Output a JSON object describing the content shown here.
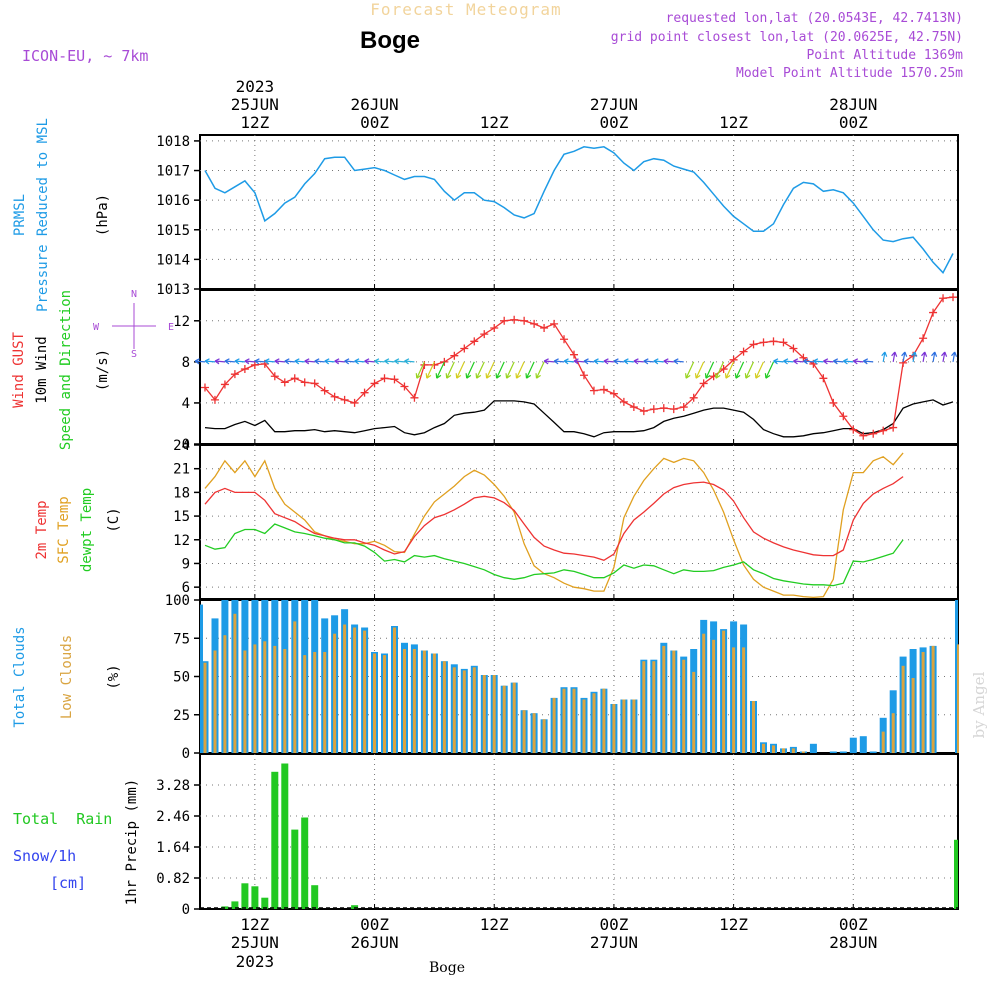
{
  "header": {
    "title": "Forecast Meteogram",
    "location": "Boge",
    "model": "ICON-EU, ~ 7km",
    "requested": "requested lon,lat (20.0543E, 42.7413N)",
    "grid_point": "grid point closest lon,lat (20.0625E, 42.75N)",
    "point_altitude": "Point Altitude 1369m",
    "model_altitude": "Model Point Altitude 1570.25m"
  },
  "time_axis": {
    "top_labels": [
      {
        "l1": "2023",
        "l2": "25JUN",
        "l3": "12Z",
        "h": 12
      },
      {
        "l1": "",
        "l2": "26JUN",
        "l3": "00Z",
        "h": 24
      },
      {
        "l1": "",
        "l2": "",
        "l3": "12Z",
        "h": 36
      },
      {
        "l1": "",
        "l2": "27JUN",
        "l3": "00Z",
        "h": 48
      },
      {
        "l1": "",
        "l2": "",
        "l3": "12Z",
        "h": 60
      },
      {
        "l1": "",
        "l2": "28JUN",
        "l3": "00Z",
        "h": 72
      }
    ],
    "bottom_labels": [
      {
        "l1": "12Z",
        "l2": "25JUN",
        "l3": "2023",
        "h": 12
      },
      {
        "l1": "00Z",
        "l2": "26JUN",
        "l3": "",
        "h": 24
      },
      {
        "l1": "12Z",
        "l2": "",
        "l3": "",
        "h": 36
      },
      {
        "l1": "00Z",
        "l2": "27JUN",
        "l3": "",
        "h": 48
      },
      {
        "l1": "12Z",
        "l2": "",
        "l3": "",
        "h": 60
      },
      {
        "l1": "00Z",
        "l2": "28JUN",
        "l3": "",
        "h": 72
      }
    ],
    "x_range_hours": [
      6.5,
      82.5
    ],
    "footer_label": "Boge",
    "watermark": "by Angel"
  },
  "colors": {
    "pressure": "#1E9BE6",
    "gust": "#EE3333",
    "wind": "#000000",
    "temp2m": "#EE3333",
    "sfc": "#E0A020",
    "dewpt": "#22CC22",
    "total_clouds": "#1E9BE6",
    "low_clouds": "#D9A441",
    "rain": "#22C822",
    "snow": "#3344EE",
    "purple": "#A84BD6"
  },
  "chart_data": [
    {
      "type": "line",
      "panel": "pressure",
      "title": "PRMSL Pressure Reduced to MSL",
      "label_1": "PRMSL",
      "label_2": "Pressure Reduced to MSL",
      "unit": "(hPa)",
      "ylim": [
        1013,
        1018.2
      ],
      "yticks": [
        1013,
        1014,
        1015,
        1016,
        1017,
        1018
      ],
      "x": [
        7,
        8,
        9,
        10,
        11,
        12,
        13,
        14,
        15,
        16,
        17,
        18,
        19,
        20,
        21,
        22,
        23,
        24,
        25,
        26,
        27,
        28,
        29,
        30,
        31,
        32,
        33,
        34,
        35,
        36,
        37,
        38,
        39,
        40,
        41,
        42,
        43,
        44,
        45,
        46,
        47,
        48,
        49,
        50,
        51,
        52,
        53,
        54,
        55,
        56,
        57,
        58,
        59,
        60,
        61,
        62,
        63,
        64,
        65,
        66,
        67,
        68,
        69,
        70,
        71,
        72,
        73,
        74,
        75,
        76,
        77,
        78,
        79,
        80,
        81,
        82
      ],
      "values": [
        1017,
        1016.4,
        1016.25,
        1016.45,
        1016.65,
        1016.25,
        1015.3,
        1015.55,
        1015.9,
        1016.1,
        1016.55,
        1016.9,
        1017.4,
        1017.45,
        1017.45,
        1017.0,
        1017.05,
        1017.1,
        1017.0,
        1016.85,
        1016.7,
        1016.8,
        1016.8,
        1016.7,
        1016.3,
        1016.0,
        1016.25,
        1016.25,
        1016.0,
        1015.95,
        1015.75,
        1015.5,
        1015.4,
        1015.55,
        1016.3,
        1017.0,
        1017.55,
        1017.65,
        1017.8,
        1017.75,
        1017.8,
        1017.6,
        1017.25,
        1017.0,
        1017.3,
        1017.4,
        1017.35,
        1017.15,
        1017.05,
        1016.95,
        1016.6,
        1016.2,
        1015.8,
        1015.45,
        1015.2,
        1014.95,
        1014.95,
        1015.2,
        1015.85,
        1016.4,
        1016.6,
        1016.55,
        1016.3,
        1016.35,
        1016.25,
        1015.9,
        1015.45,
        1015.0,
        1014.65,
        1014.6,
        1014.7,
        1014.75,
        1014.35,
        1013.9,
        1013.55,
        1014.2
      ]
    },
    {
      "type": "line",
      "panel": "wind",
      "title": "Wind GUST / 10m Wind Speed and Direction",
      "label_gust": "Wind GUST",
      "label_wind": "10m Wind",
      "label_dir": "Speed and Direction",
      "unit": "(m/s)",
      "compass": {
        "w": "W",
        "e": "E",
        "n": "N",
        "s": "S"
      },
      "ylim": [
        0,
        15
      ],
      "yticks": [
        0,
        4,
        8,
        12
      ],
      "x": [
        7,
        8,
        9,
        10,
        11,
        12,
        13,
        14,
        15,
        16,
        17,
        18,
        19,
        20,
        21,
        22,
        23,
        24,
        25,
        26,
        27,
        28,
        29,
        30,
        31,
        32,
        33,
        34,
        35,
        36,
        37,
        38,
        39,
        40,
        41,
        42,
        43,
        44,
        45,
        46,
        47,
        48,
        49,
        50,
        51,
        52,
        53,
        54,
        55,
        56,
        57,
        58,
        59,
        60,
        61,
        62,
        63,
        64,
        65,
        66,
        67,
        68,
        69,
        70,
        71,
        72,
        73,
        74,
        75,
        76,
        77,
        78,
        79,
        80,
        81,
        82
      ],
      "gust": [
        5.5,
        4.3,
        5.8,
        6.8,
        7.3,
        7.7,
        7.8,
        6.6,
        6.0,
        6.4,
        6.0,
        5.9,
        5.2,
        4.6,
        4.3,
        4.0,
        5.0,
        5.9,
        6.4,
        6.3,
        5.6,
        4.5,
        7.7,
        7.7,
        8.0,
        8.6,
        9.3,
        10.0,
        10.7,
        11.3,
        12.0,
        12.1,
        12.0,
        11.7,
        11.3,
        11.7,
        10.2,
        8.7,
        6.7,
        5.2,
        5.3,
        4.9,
        4.1,
        3.6,
        3.2,
        3.4,
        3.5,
        3.4,
        3.6,
        4.5,
        5.9,
        6.6,
        7.3,
        8.2,
        9.0,
        9.7,
        9.9,
        10.0,
        9.9,
        9.3,
        8.4,
        7.8,
        6.4,
        4.0,
        2.7,
        1.4,
        0.8,
        1.0,
        1.3,
        1.6,
        2.3,
        3.3,
        3.8,
        4.7,
        5.6,
        6.5
      ],
      "wind": [
        1.6,
        1.5,
        1.5,
        1.9,
        2.2,
        1.8,
        2.3,
        1.2,
        1.2,
        1.3,
        1.3,
        1.4,
        1.2,
        1.3,
        1.2,
        1.1,
        1.3,
        1.5,
        1.6,
        1.7,
        1.1,
        0.9,
        1.1,
        1.6,
        2.0,
        2.8,
        3.0,
        3.1,
        3.3,
        4.2,
        4.2,
        4.2,
        4.1,
        3.9,
        3.0,
        2.1,
        1.2,
        1.2,
        1.0,
        0.7,
        1.1,
        1.2,
        1.2,
        1.2,
        1.3,
        1.6,
        2.2,
        2.5,
        2.7,
        3.0,
        3.3,
        3.5,
        3.5,
        3.3,
        3.1,
        2.4,
        1.4,
        1.0,
        0.7,
        0.7,
        0.8,
        1.0,
        1.1,
        1.3,
        1.5,
        1.5,
        1.0,
        1.1,
        1.4,
        2.0,
        3.5,
        3.9,
        4.1,
        4.3,
        3.8,
        4.1
      ],
      "gust_tail": [
        7.9,
        8.6,
        10.3,
        12.8,
        14.2,
        14.3
      ]
    },
    {
      "type": "line",
      "panel": "temperature",
      "title": "2m Temp / SFC Temp / dewpt Temp",
      "label_2m": "2m Temp",
      "label_sfc": "SFC Temp",
      "label_dewpt": "dewpt Temp",
      "unit": "(C)",
      "ylim": [
        4.5,
        24
      ],
      "yticks": [
        6,
        9,
        12,
        15,
        18,
        21,
        24
      ],
      "x": [
        7,
        8,
        9,
        10,
        11,
        12,
        13,
        14,
        15,
        16,
        17,
        18,
        19,
        20,
        21,
        22,
        23,
        24,
        25,
        26,
        27,
        28,
        29,
        30,
        31,
        32,
        33,
        34,
        35,
        36,
        37,
        38,
        39,
        40,
        41,
        42,
        43,
        44,
        45,
        46,
        47,
        48,
        49,
        50,
        51,
        52,
        53,
        54,
        55,
        56,
        57,
        58,
        59,
        60,
        61,
        62,
        63,
        64,
        65,
        66,
        67,
        68,
        69,
        70,
        71,
        72,
        73,
        74,
        75,
        76,
        77,
        78,
        79,
        80,
        81,
        82
      ],
      "temp2m": [
        16.5,
        18.0,
        18.5,
        18.0,
        18.0,
        18.0,
        17.0,
        15.3,
        14.8,
        14.3,
        13.5,
        12.8,
        12.5,
        12.2,
        12.0,
        12.0,
        11.6,
        11.3,
        10.7,
        10.2,
        10.5,
        12.4,
        13.8,
        14.8,
        15.2,
        15.8,
        16.5,
        17.3,
        17.5,
        17.3,
        16.7,
        15.7,
        14.0,
        12.3,
        11.2,
        10.7,
        10.3,
        10.2,
        10.0,
        9.8,
        9.4,
        10.2,
        12.8,
        14.5,
        15.5,
        16.6,
        17.8,
        18.6,
        19.0,
        19.2,
        19.3,
        19.0,
        18.3,
        16.9,
        14.8,
        13.0,
        12.2,
        11.6,
        11.1,
        10.7,
        10.4,
        10.1,
        10.0,
        10.0,
        10.7,
        14.5,
        16.6,
        17.8,
        18.5,
        19.1,
        20.0,
        17.0,
        17.0,
        17.0,
        17.0,
        17.0
      ],
      "sfc": [
        18.5,
        20.0,
        22.0,
        20.5,
        22.0,
        20.0,
        22.0,
        18.5,
        16.5,
        15.5,
        14.5,
        13.0,
        12.5,
        12.0,
        11.8,
        11.5,
        11.5,
        11.8,
        11.3,
        10.5,
        10.4,
        12.7,
        15.0,
        16.8,
        17.8,
        18.8,
        20.0,
        20.8,
        20.2,
        19.0,
        17.5,
        15.5,
        11.5,
        8.7,
        7.7,
        7.2,
        6.5,
        6.0,
        5.8,
        5.5,
        5.5,
        8.5,
        14.8,
        17.5,
        19.5,
        21.0,
        22.3,
        21.8,
        22.3,
        22.0,
        20.5,
        18.3,
        15.5,
        12.0,
        8.8,
        7.0,
        6.0,
        5.5,
        5.0,
        5.0,
        4.8,
        4.7,
        4.8,
        7.0,
        15.8,
        20.5,
        20.5,
        22.0,
        22.5,
        21.5,
        23.0,
        18.0,
        18.0,
        18.0,
        18.0,
        18.0
      ],
      "dewpt": [
        11.3,
        10.8,
        11.0,
        12.8,
        13.3,
        13.3,
        12.8,
        14.0,
        13.5,
        13.0,
        12.8,
        12.5,
        12.2,
        12.0,
        11.6,
        11.6,
        11.2,
        10.4,
        9.3,
        9.5,
        9.2,
        10.0,
        9.8,
        10.0,
        9.6,
        9.3,
        9.0,
        8.6,
        8.2,
        7.6,
        7.2,
        7.0,
        7.2,
        7.6,
        7.7,
        7.8,
        8.2,
        8.0,
        7.6,
        7.2,
        7.2,
        7.8,
        8.8,
        8.4,
        8.8,
        8.7,
        8.2,
        7.7,
        8.2,
        8.0,
        8.0,
        8.1,
        8.5,
        8.8,
        9.2,
        8.2,
        7.7,
        7.1,
        6.8,
        6.6,
        6.4,
        6.3,
        6.3,
        6.2,
        6.5,
        9.3,
        9.2,
        9.5,
        9.9,
        10.3,
        12.0,
        12.0,
        12.0,
        12.0,
        12.0,
        12.0
      ]
    },
    {
      "type": "bar",
      "panel": "clouds",
      "title": "Total Clouds / Low Clouds",
      "label_total": "Total Clouds",
      "label_low": "Low Clouds",
      "unit": "(%)",
      "ylim": [
        0,
        100
      ],
      "yticks": [
        0,
        25,
        50,
        75,
        100
      ],
      "x": [
        7,
        8,
        9,
        10,
        11,
        12,
        13,
        14,
        15,
        16,
        17,
        18,
        19,
        20,
        21,
        22,
        23,
        24,
        25,
        26,
        27,
        28,
        29,
        30,
        31,
        32,
        33,
        34,
        35,
        36,
        37,
        38,
        39,
        40,
        41,
        42,
        43,
        44,
        45,
        46,
        47,
        48,
        49,
        50,
        51,
        52,
        53,
        54,
        55,
        56,
        57,
        58,
        59,
        60,
        61,
        62,
        63,
        64,
        65,
        66,
        67,
        68,
        69,
        70,
        71,
        72,
        73,
        74,
        75,
        76,
        77,
        78,
        79,
        80,
        81,
        82
      ],
      "total": [
        60,
        88,
        100,
        100,
        100,
        100,
        100,
        100,
        100,
        100,
        100,
        100,
        88,
        90,
        94,
        84,
        82,
        66,
        65,
        83,
        72,
        71,
        67,
        65,
        60,
        58,
        55,
        57,
        51,
        51,
        44,
        46,
        28,
        26,
        22,
        36,
        43,
        43,
        36,
        40,
        42,
        32,
        35,
        35,
        61,
        61,
        72,
        67,
        63,
        68,
        87,
        86,
        81,
        86,
        84,
        34,
        7,
        6,
        3,
        4,
        1,
        6,
        0,
        1,
        1,
        10,
        11,
        1,
        23,
        41,
        63,
        68,
        69,
        70,
        1,
        1
      ],
      "low": [
        59,
        67,
        77,
        91,
        67,
        71,
        73,
        70,
        68,
        86,
        64,
        66,
        66,
        78,
        84,
        82,
        80,
        65,
        64,
        82,
        68,
        68,
        67,
        65,
        60,
        56,
        54,
        56,
        51,
        51,
        44,
        46,
        28,
        26,
        22,
        36,
        42,
        42,
        35,
        39,
        42,
        32,
        35,
        35,
        60,
        60,
        70,
        67,
        61,
        53,
        78,
        74,
        80,
        69,
        69,
        34,
        6,
        5,
        3,
        3,
        1,
        0,
        0,
        0,
        0,
        0,
        0,
        0,
        14,
        26,
        57,
        49,
        66,
        70,
        0,
        0
      ],
      "right_edge": {
        "total": 100,
        "low": 71
      }
    },
    {
      "type": "bar",
      "panel": "precip",
      "title": "1hr Precip (mm)",
      "label_rain": "Total  Rain",
      "label_snow": "Snow/1h",
      "label_cm": "[cm]",
      "unit": "1hr Precip (mm)",
      "ylim": [
        0,
        4.1
      ],
      "yticks": [
        0,
        0.82,
        1.64,
        2.46,
        3.28
      ],
      "ytick_labels": [
        "0",
        "0.82",
        "1.64",
        "2.46",
        "3.28"
      ],
      "x": [
        9,
        10,
        11,
        12,
        13,
        14,
        15,
        16,
        17,
        18,
        22,
        82.8
      ],
      "rain": [
        0.07,
        0.2,
        0.68,
        0.6,
        0.3,
        3.63,
        3.85,
        2.1,
        2.42,
        0.63,
        0.1,
        1.83
      ]
    }
  ]
}
